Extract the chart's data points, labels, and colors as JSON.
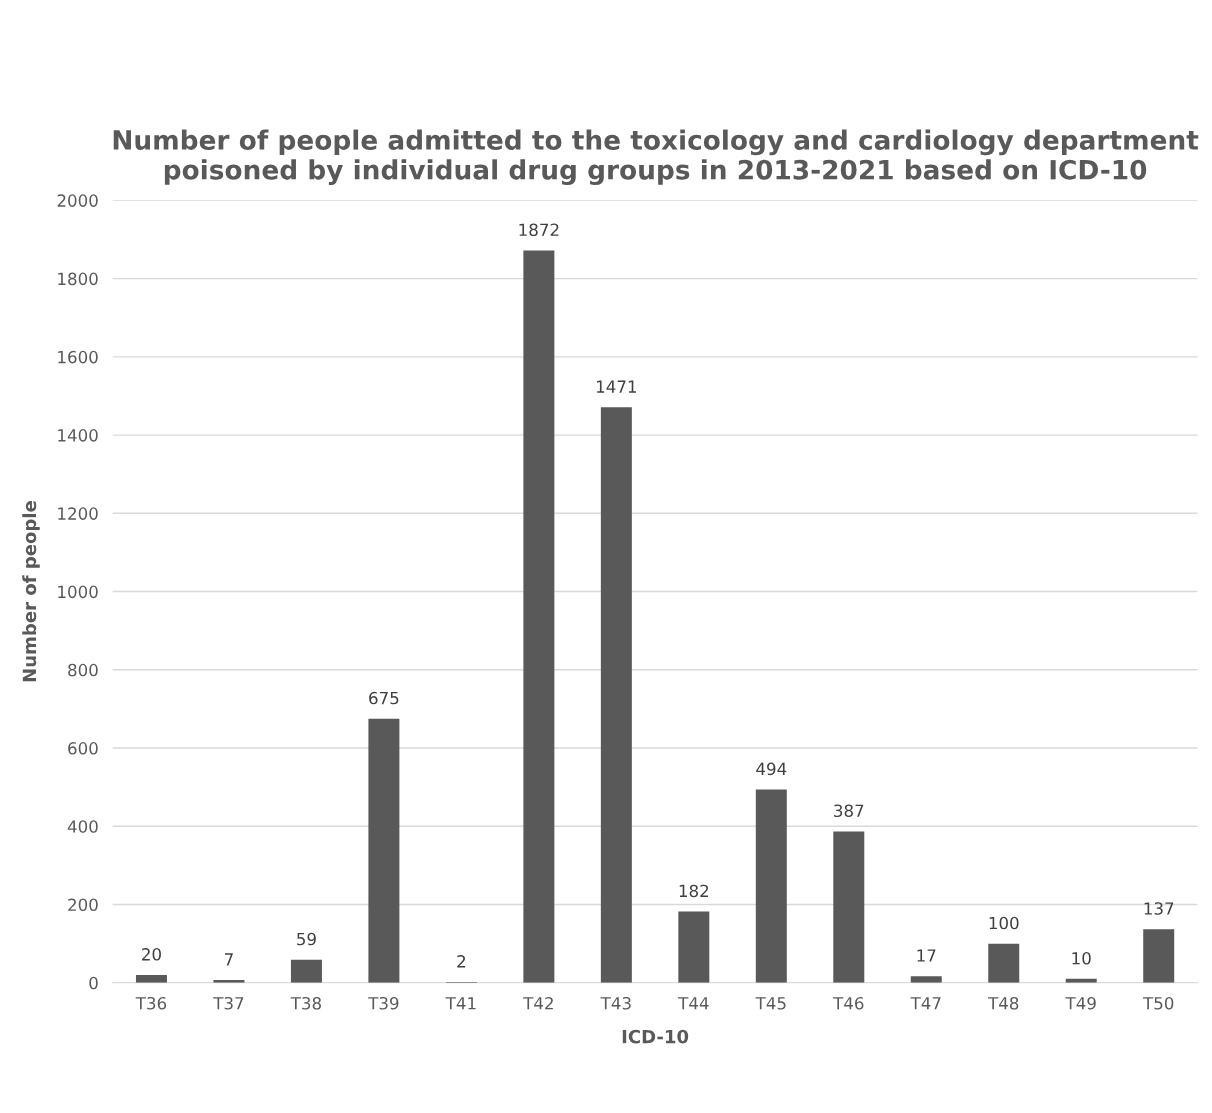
{
  "chart_data": {
    "type": "bar",
    "title": "Number of people admitted to the toxicology and cardiology department poisoned by individual drug groups in 2013-2021 based on ICD-10",
    "xlabel": "ICD-10",
    "ylabel": "Number of people",
    "categories": [
      "T36",
      "T37",
      "T38",
      "T39",
      "T41",
      "T42",
      "T43",
      "T44",
      "T45",
      "T46",
      "T47",
      "T48",
      "T49",
      "T50"
    ],
    "values": [
      20,
      7,
      59,
      675,
      2,
      1872,
      1471,
      182,
      494,
      387,
      17,
      100,
      10,
      137
    ],
    "color": "#595959",
    "ylim": [
      0,
      2000
    ],
    "yticks": [
      0,
      200,
      400,
      600,
      800,
      1000,
      1200,
      1400,
      1600,
      1800,
      2000
    ],
    "grid": "y",
    "data_labels": true,
    "legend": false
  }
}
